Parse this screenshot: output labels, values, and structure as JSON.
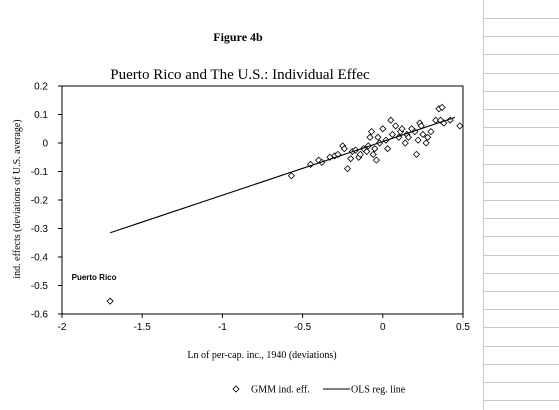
{
  "figure_label": "Figure 4b",
  "chart_data": {
    "type": "scatter",
    "title": "Puerto Rico and The U.S.: Individual Effec",
    "xlabel": "Ln of per-cap. inc., 1940 (deviations)",
    "ylabel": "ind. effects (deviations of U.S. average)",
    "xlim": [
      -2,
      0.5
    ],
    "ylim": [
      -0.6,
      0.2
    ],
    "xticks": [
      -2,
      -1.5,
      -1,
      -0.5,
      0,
      0.5
    ],
    "xtick_labels": [
      "-2",
      "-1.5",
      "-1",
      "-0.5",
      "0",
      "0.5"
    ],
    "yticks": [
      0.2,
      0.1,
      0,
      -0.1,
      -0.2,
      -0.3,
      -0.4,
      -0.5,
      -0.6
    ],
    "ytick_labels": [
      "0.2",
      "0.1",
      "0",
      "-0.1",
      "-0.2",
      "-0.3",
      "-0.4",
      "-0.5",
      "-0.6"
    ],
    "grid": false,
    "legend": "bottom",
    "annotations": [
      {
        "text": "Puerto Rico",
        "x": -1.94,
        "y": -0.47
      }
    ],
    "series": [
      {
        "name": "GMM ind. eff.",
        "kind": "scatter",
        "marker": "diamond",
        "points": [
          [
            -1.7,
            -0.555
          ],
          [
            -0.57,
            -0.115
          ],
          [
            -0.45,
            -0.075
          ],
          [
            -0.4,
            -0.06
          ],
          [
            -0.38,
            -0.068
          ],
          [
            -0.33,
            -0.05
          ],
          [
            -0.3,
            -0.045
          ],
          [
            -0.28,
            -0.04
          ],
          [
            -0.25,
            -0.01
          ],
          [
            -0.24,
            -0.02
          ],
          [
            -0.22,
            -0.09
          ],
          [
            -0.2,
            -0.055
          ],
          [
            -0.19,
            -0.03
          ],
          [
            -0.17,
            -0.025
          ],
          [
            -0.15,
            -0.05
          ],
          [
            -0.14,
            -0.04
          ],
          [
            -0.12,
            -0.02
          ],
          [
            -0.1,
            -0.03
          ],
          [
            -0.09,
            -0.01
          ],
          [
            -0.08,
            0.02
          ],
          [
            -0.07,
            0.04
          ],
          [
            -0.06,
            -0.04
          ],
          [
            -0.05,
            -0.02
          ],
          [
            -0.04,
            -0.06
          ],
          [
            -0.03,
            0.02
          ],
          [
            -0.02,
            0.0
          ],
          [
            0.0,
            0.05
          ],
          [
            0.02,
            0.01
          ],
          [
            0.03,
            -0.02
          ],
          [
            0.05,
            0.08
          ],
          [
            0.06,
            0.03
          ],
          [
            0.08,
            0.06
          ],
          [
            0.1,
            0.02
          ],
          [
            0.11,
            0.04
          ],
          [
            0.12,
            0.05
          ],
          [
            0.14,
            0.0
          ],
          [
            0.15,
            0.03
          ],
          [
            0.16,
            0.02
          ],
          [
            0.18,
            0.05
          ],
          [
            0.2,
            0.04
          ],
          [
            0.21,
            -0.04
          ],
          [
            0.22,
            0.01
          ],
          [
            0.23,
            0.07
          ],
          [
            0.24,
            0.06
          ],
          [
            0.25,
            0.03
          ],
          [
            0.27,
            0.0
          ],
          [
            0.28,
            0.02
          ],
          [
            0.3,
            0.04
          ],
          [
            0.33,
            0.08
          ],
          [
            0.35,
            0.12
          ],
          [
            0.36,
            0.08
          ],
          [
            0.37,
            0.125
          ],
          [
            0.38,
            0.07
          ],
          [
            0.42,
            0.08
          ],
          [
            0.48,
            0.06
          ]
        ]
      },
      {
        "name": "OLS reg. line",
        "kind": "line",
        "points": [
          [
            -1.7,
            -0.315
          ],
          [
            0.45,
            0.09
          ]
        ]
      }
    ]
  }
}
